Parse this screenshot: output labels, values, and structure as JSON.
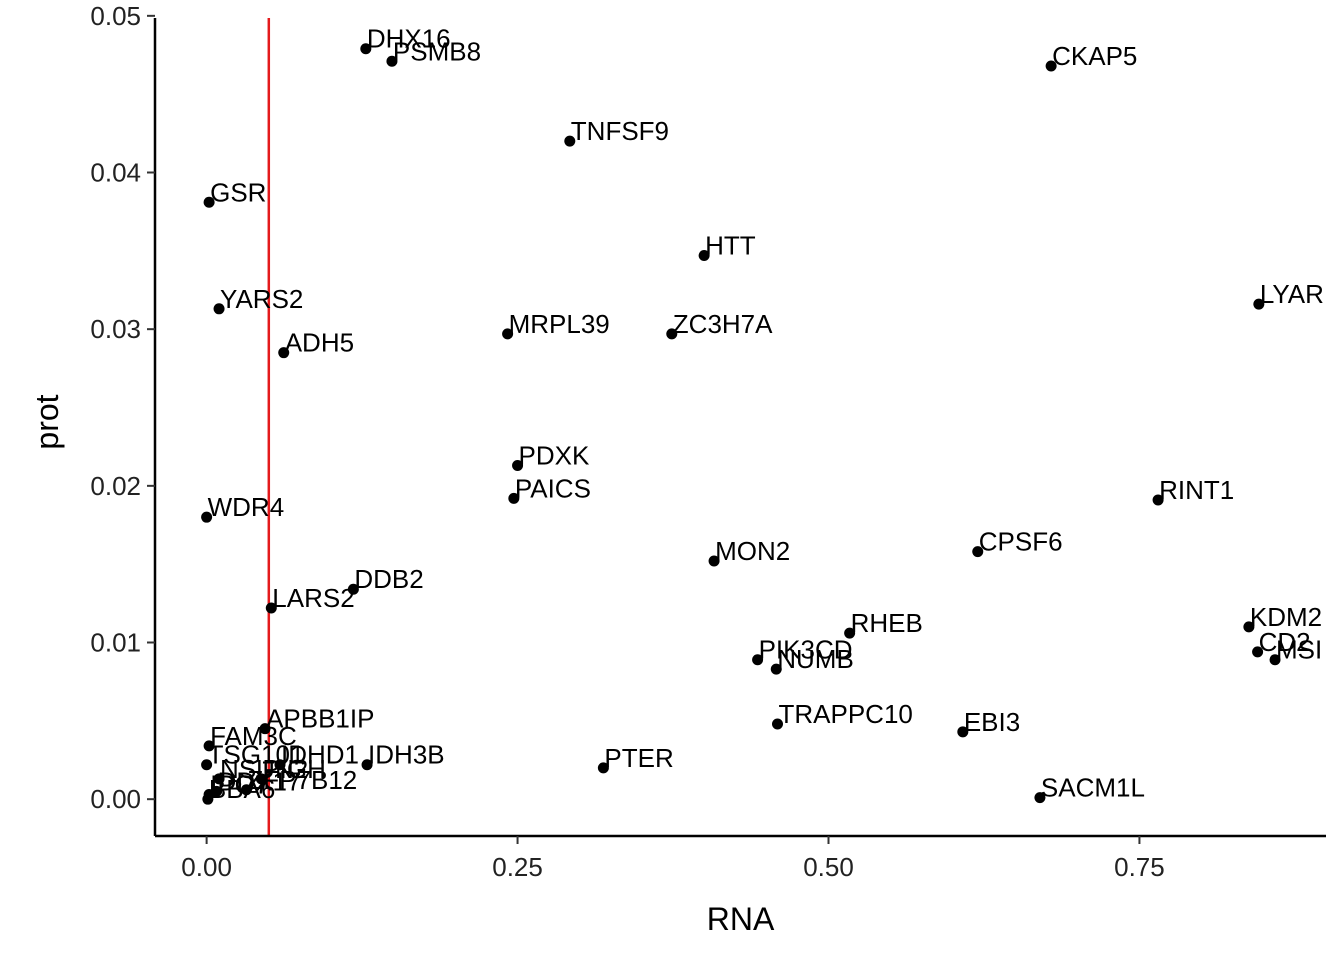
{
  "chart_data": {
    "type": "scatter",
    "title": "",
    "xlabel": "RNA",
    "ylabel": "prot",
    "xlim": [
      -0.0415,
      0.9
    ],
    "ylim": [
      -0.00235,
      0.0505
    ],
    "x_ticks": [
      0.0,
      0.25,
      0.5,
      0.75
    ],
    "x_tick_labels": [
      "0.00",
      "0.25",
      "0.50",
      "0.75"
    ],
    "y_ticks": [
      0.0,
      0.01,
      0.02,
      0.03,
      0.04,
      0.05
    ],
    "y_tick_labels": [
      "0.00",
      "0.01",
      "0.02",
      "0.03",
      "0.04",
      "0.05"
    ],
    "grid": false,
    "legend": "none",
    "vline": {
      "x": 0.05,
      "color": "#e41a1c"
    },
    "point_color": "#000000",
    "points": [
      {
        "label": "DHX16",
        "x": 0.128,
        "y": 0.0479
      },
      {
        "label": "PSMB8",
        "x": 0.149,
        "y": 0.0471
      },
      {
        "label": "CKAP5",
        "x": 0.679,
        "y": 0.0468
      },
      {
        "label": "TNFSF9",
        "x": 0.292,
        "y": 0.042
      },
      {
        "label": "GSR",
        "x": 0.002,
        "y": 0.0381
      },
      {
        "label": "HTT",
        "x": 0.4,
        "y": 0.0347
      },
      {
        "label": "YARS2",
        "x": 0.01,
        "y": 0.0313
      },
      {
        "label": "LYAR",
        "x": 0.846,
        "y": 0.0316
      },
      {
        "label": "ADH5",
        "x": 0.062,
        "y": 0.0285
      },
      {
        "label": "MRPL39",
        "x": 0.242,
        "y": 0.0297
      },
      {
        "label": "ZC3H7A",
        "x": 0.374,
        "y": 0.0297
      },
      {
        "label": "PDXK",
        "x": 0.25,
        "y": 0.0213
      },
      {
        "label": "PAICS",
        "x": 0.247,
        "y": 0.0192
      },
      {
        "label": "RINT1",
        "x": 0.765,
        "y": 0.0191
      },
      {
        "label": "WDR4",
        "x": 0.0,
        "y": 0.018
      },
      {
        "label": "CPSF6",
        "x": 0.62,
        "y": 0.0158
      },
      {
        "label": "MON2",
        "x": 0.408,
        "y": 0.0152
      },
      {
        "label": "DDB2",
        "x": 0.118,
        "y": 0.0134
      },
      {
        "label": "LARS2",
        "x": 0.052,
        "y": 0.0122
      },
      {
        "label": "RHEB",
        "x": 0.517,
        "y": 0.0106
      },
      {
        "label": "KDM2",
        "x": 0.838,
        "y": 0.011
      },
      {
        "label": "CD2",
        "x": 0.845,
        "y": 0.0094
      },
      {
        "label": "MSI",
        "x": 0.859,
        "y": 0.0089
      },
      {
        "label": "PIK3CD",
        "x": 0.443,
        "y": 0.0089
      },
      {
        "label": "NUMB",
        "x": 0.458,
        "y": 0.0083
      },
      {
        "label": "TRAPPC10",
        "x": 0.459,
        "y": 0.0048
      },
      {
        "label": "EBI3",
        "x": 0.608,
        "y": 0.0043
      },
      {
        "label": "APBB1IP",
        "x": 0.047,
        "y": 0.0045
      },
      {
        "label": "FAM3C",
        "x": 0.002,
        "y": 0.0034
      },
      {
        "label": "TSG101",
        "x": 0.0,
        "y": 0.0022
      },
      {
        "label": "IDHD1",
        "x": 0.059,
        "y": 0.0022
      },
      {
        "label": "IDH3B",
        "x": 0.129,
        "y": 0.0022
      },
      {
        "label": "PTER",
        "x": 0.319,
        "y": 0.002
      },
      {
        "label": "NSUN2",
        "x": 0.01,
        "y": 0.0013
      },
      {
        "label": "PIGH",
        "x": 0.044,
        "y": 0.0013
      },
      {
        "label": "SACM1L",
        "x": 0.67,
        "y": 0.0001
      },
      {
        "label": "IPO7",
        "x": 0.002,
        "y": 0.0003
      },
      {
        "label": "DDX17",
        "x": 0.008,
        "y": 0.0005
      },
      {
        "label": "ZFP7B12",
        "x": 0.032,
        "y": 0.0006
      },
      {
        "label": "BBA6",
        "x": 0.001,
        "y": 0.0
      }
    ]
  }
}
